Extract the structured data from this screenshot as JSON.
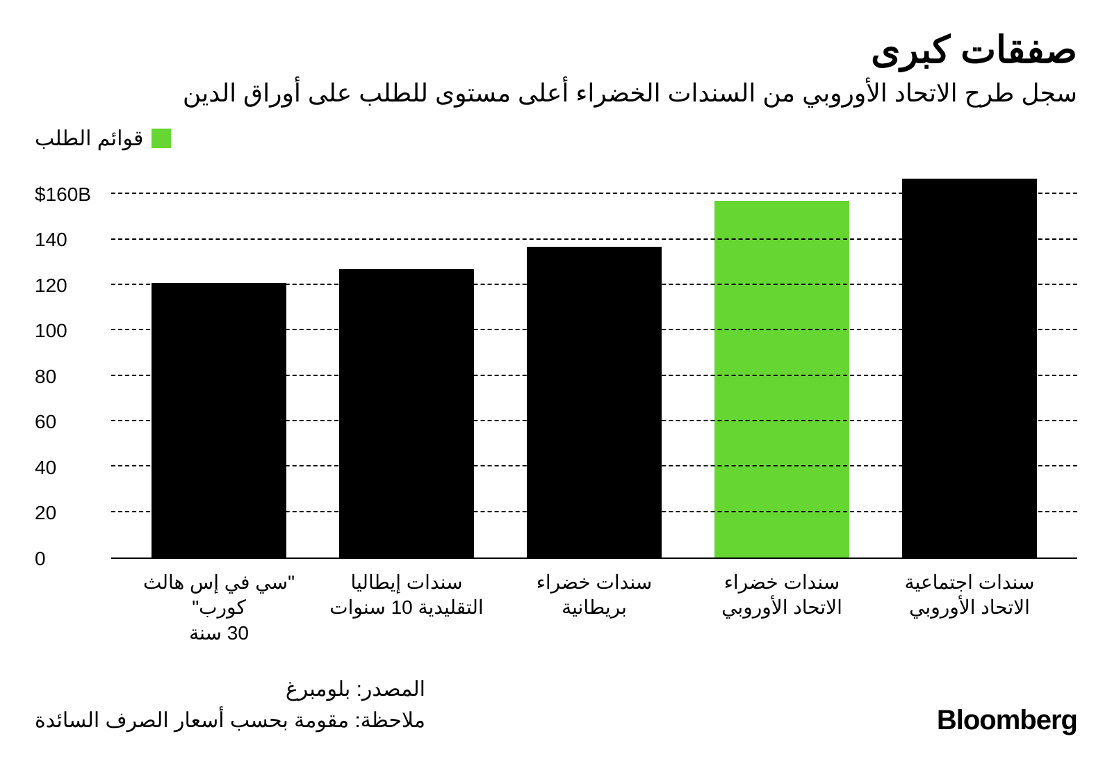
{
  "title": "صفقات كبرى",
  "subtitle": "سجل طرح الاتحاد الأوروبي من السندات الخضراء أعلى مستوى للطلب على أوراق الدين",
  "legend": {
    "label": "قوائم الطلب",
    "color": "#66d633"
  },
  "chart": {
    "type": "bar",
    "ylim": [
      0,
      170
    ],
    "yticks": [
      {
        "value": 0,
        "label": "0"
      },
      {
        "value": 20,
        "label": "20"
      },
      {
        "value": 40,
        "label": "40"
      },
      {
        "value": 60,
        "label": "60"
      },
      {
        "value": 80,
        "label": "80"
      },
      {
        "value": 100,
        "label": "100"
      },
      {
        "value": 120,
        "label": "120"
      },
      {
        "value": 140,
        "label": "140"
      },
      {
        "value": 160,
        "label": "$160B"
      }
    ],
    "bars": [
      {
        "label_line1": "سندات اجتماعية",
        "label_line2": "الاتحاد الأوروبي",
        "value": 167,
        "color": "#000000"
      },
      {
        "label_line1": "سندات خضراء",
        "label_line2": "الاتحاد الأوروبي",
        "value": 157,
        "color": "#66d633"
      },
      {
        "label_line1": "سندات خضراء",
        "label_line2": "بريطانية",
        "value": 137,
        "color": "#000000"
      },
      {
        "label_line1": "سندات إيطاليا",
        "label_line2": "التقليدية 10 سنوات",
        "value": 127,
        "color": "#000000"
      },
      {
        "label_line1": "\"سي في إس هالث كورب\"",
        "label_line2": "30 سنة",
        "value": 121,
        "color": "#000000"
      }
    ],
    "grid_color": "#000000",
    "background_color": "#ffffff"
  },
  "footer": {
    "source": "المصدر: بلومبرغ",
    "note": "ملاحظة: مقومة بحسب أسعار الصرف السائدة",
    "brand": "Bloomberg"
  }
}
